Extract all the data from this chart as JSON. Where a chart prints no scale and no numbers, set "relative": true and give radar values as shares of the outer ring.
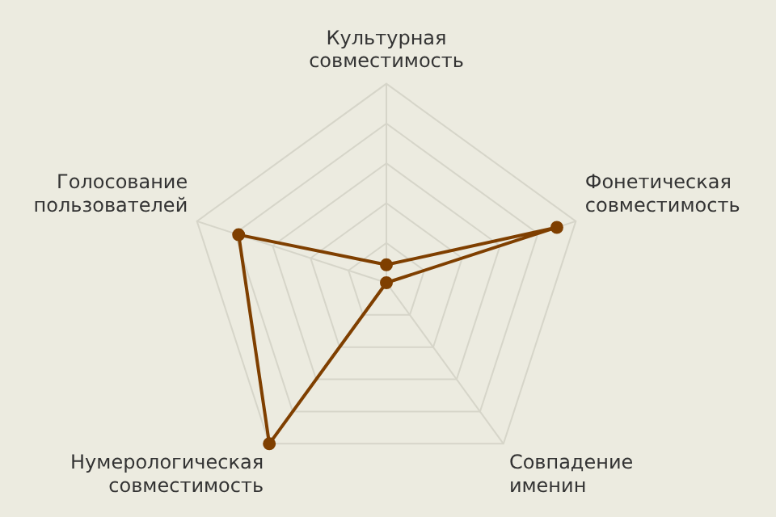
{
  "chart_data": {
    "type": "radar",
    "relative": true,
    "grid": true,
    "legend": false,
    "marker": "circle",
    "categories": [
      "Культурная совместимость",
      "Фонетическая совместимость",
      "Совпадение именин",
      "Нумерологическая совместимость",
      "Голосование пользователей"
    ],
    "series": [
      {
        "color": "#7f3f00",
        "values": [
          0.09,
          0.9,
          0,
          1,
          0.78
        ]
      }
    ]
  }
}
